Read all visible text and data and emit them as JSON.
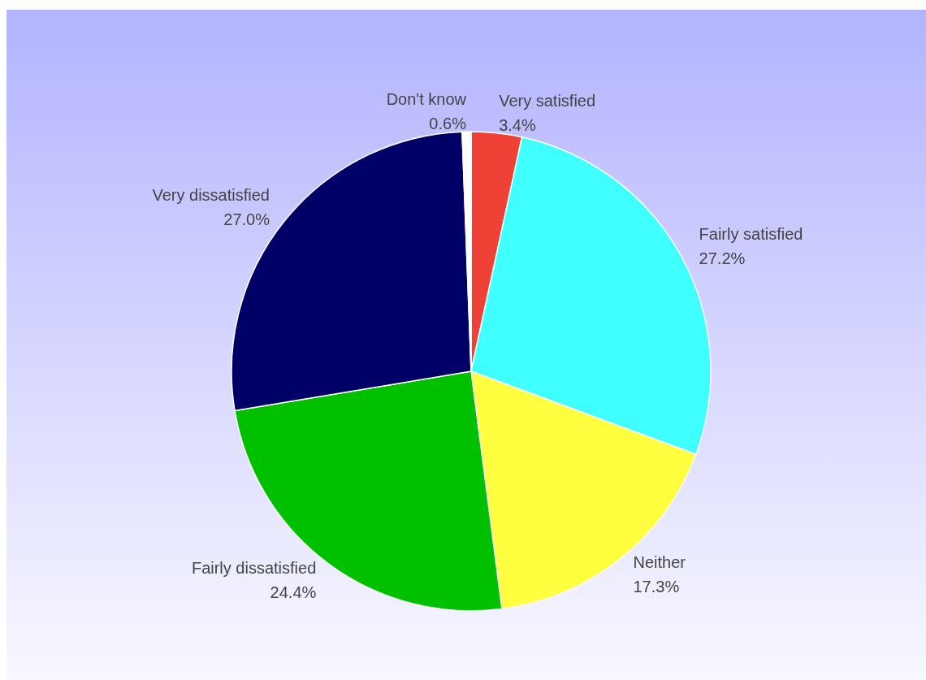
{
  "chart_data": {
    "type": "pie",
    "categories": [
      "Very satisfied",
      "Fairly satisfied",
      "Neither",
      "Fairly dissatisfied",
      "Very dissatisfied",
      "Don't know"
    ],
    "values": [
      3.4,
      27.2,
      17.3,
      24.4,
      27.0,
      0.6
    ],
    "value_labels": [
      "3.4%",
      "27.2%",
      "17.3%",
      "24.4%",
      "27.0%",
      "0.6%"
    ],
    "colors": [
      "#ef4136",
      "#40ffff",
      "#ffff40",
      "#00c000",
      "#000066",
      "#ffffff"
    ],
    "legend": false
  }
}
